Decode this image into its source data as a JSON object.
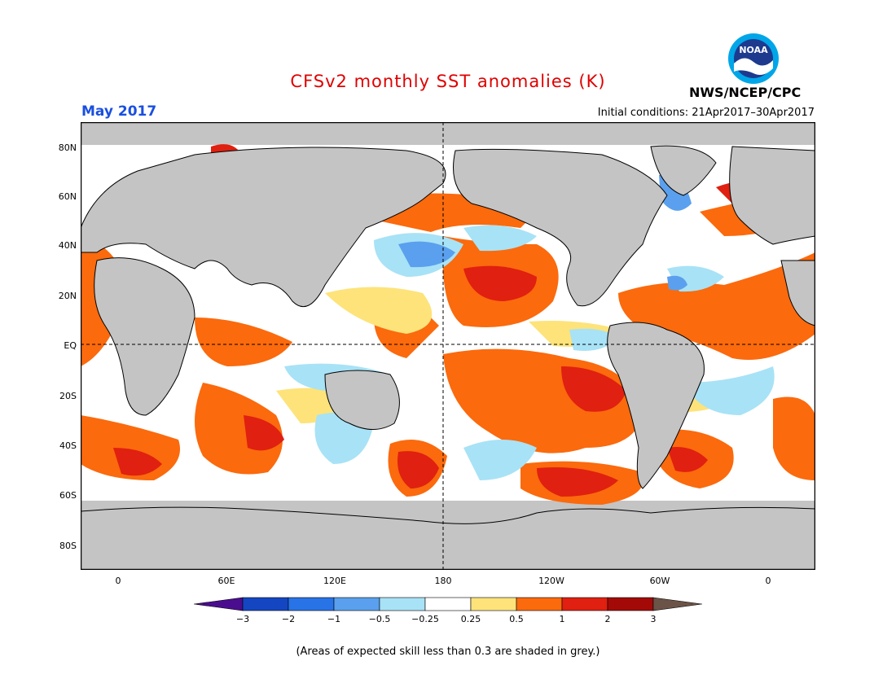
{
  "header": {
    "title": "CFSv2 monthly SST anomalies (K)",
    "month": "May 2017",
    "initial_conditions": "Initial conditions: 21Apr2017–30Apr2017",
    "agency": "NWS/NCEP/CPC",
    "logo_text": "NOAA"
  },
  "axes": {
    "lat_labels": [
      "80N",
      "60N",
      "40N",
      "20N",
      "EQ",
      "20S",
      "40S",
      "60S",
      "80S"
    ],
    "lon_labels": [
      "0",
      "60E",
      "120E",
      "180",
      "120W",
      "60W",
      "0"
    ]
  },
  "colorbar": {
    "labels": [
      "−3",
      "−2",
      "−1",
      "−0.5",
      "−0.25",
      "0.25",
      "0.5",
      "1",
      "2",
      "3"
    ],
    "colors": [
      "#4b0d8f",
      "#1446c2",
      "#2873e6",
      "#5aa0ee",
      "#a8e2f6",
      "#ffffff",
      "#fde37a",
      "#fb6a0d",
      "#e02010",
      "#a30a07",
      "#6b5348"
    ]
  },
  "colors": {
    "land": "#c4c4c4",
    "title": "#e00000",
    "month": "#1a4fe0"
  },
  "footnote": "(Areas of expected skill less than 0.3 are shaded in grey.)"
}
